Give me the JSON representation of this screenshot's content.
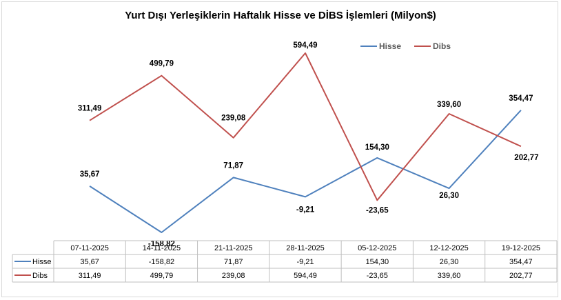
{
  "chart_data": {
    "type": "line",
    "title": "Yurt Dışı Yerleşiklerin Haftalık Hisse ve DİBS İşlemleri (Milyon$)",
    "categories": [
      "07-11-2025",
      "14-11-2025",
      "21-11-2025",
      "28-11-2025",
      "05-12-2025",
      "12-12-2025",
      "19-12-2025"
    ],
    "series": [
      {
        "name": "Hisse",
        "color": "#4f81bd",
        "values": [
          35.67,
          -158.82,
          71.87,
          -9.21,
          154.3,
          26.3,
          354.47
        ],
        "labels": [
          "35,67",
          "-158,82",
          "71,87",
          "-9,21",
          "154,30",
          "26,30",
          "354,47"
        ]
      },
      {
        "name": "Dibs",
        "color": "#c0504d",
        "values": [
          311.49,
          499.79,
          239.08,
          594.49,
          -23.65,
          339.6,
          202.77
        ],
        "labels": [
          "311,49",
          "499,79",
          "239,08",
          "594,49",
          "-23,65",
          "339,60",
          "202,77"
        ]
      }
    ],
    "legend": "top-right",
    "grid": false,
    "data_table": true
  }
}
